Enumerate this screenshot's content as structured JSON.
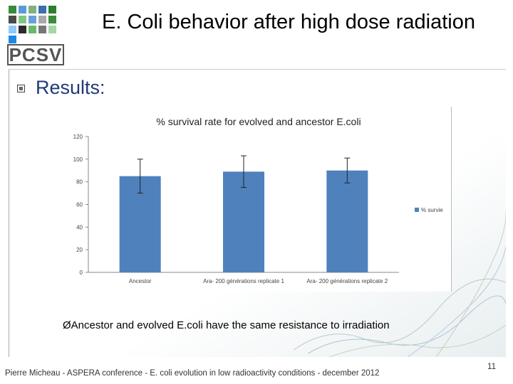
{
  "slide": {
    "title": "E. Coli behavior after high dose radiation",
    "bullet": "Results:",
    "conclusion": "Ancestor and evolved E.coli have the same resistance to irradiation",
    "footer": "Pierre Micheau - ASPERA conference - E. coli evolution in low radioactivity conditions - december 2012",
    "page_number": "11"
  },
  "logo": {
    "text": "PCSV",
    "square_colors": [
      "#3a8a3a",
      "#5b9bd5",
      "#7fb27f",
      "#3a6fb0",
      "#2e7d32",
      "#4a4a4a",
      "#81c784",
      "#6aa0d8",
      "#aaaaaa",
      "#388e3c",
      "#90caf9",
      "#2b2b2b",
      "#66bb6a",
      "#777777",
      "#a5d6a7",
      "#1e88e5"
    ]
  },
  "chart_data": {
    "type": "bar",
    "title": "% survival rate for evolved and ancestor E.coli",
    "categories": [
      "Ancestor",
      "Ara- 200 générations replicate 1",
      "Ara- 200 générations replicate 2"
    ],
    "series": [
      {
        "name": "% survie",
        "values": [
          85,
          89,
          90
        ],
        "error": [
          15,
          14,
          11
        ],
        "color": "#4f81bd"
      }
    ],
    "ylim": [
      0,
      120
    ],
    "yticks": [
      0,
      20,
      40,
      60,
      80,
      100,
      120
    ],
    "legend_position": "right",
    "grid": false
  }
}
